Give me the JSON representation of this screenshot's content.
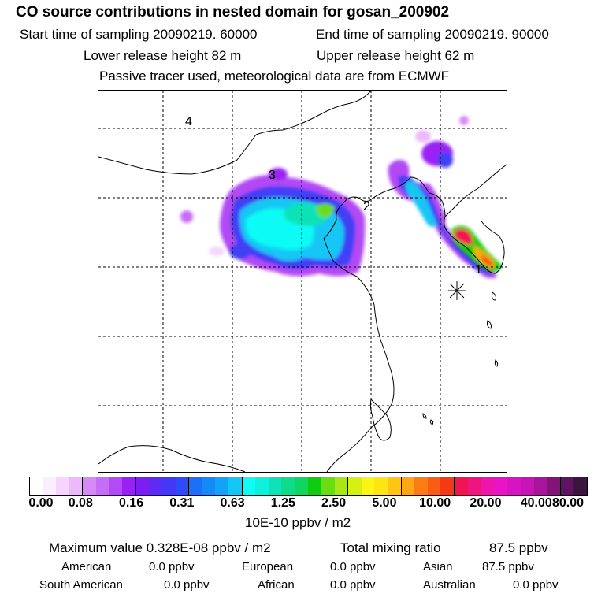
{
  "header": {
    "title": "CO  source contributions in nested domain for gosan_200902",
    "start_time": "Start time of sampling 20090219. 60000",
    "end_time": "End time of sampling 20090219. 90000",
    "lower_release": "Lower release height   82 m",
    "upper_release": "Upper release height   62 m",
    "tracer_note": "Passive tracer used, meteorological data are from ECMWF"
  },
  "map": {
    "labels": [
      "4",
      "3",
      "2",
      "1"
    ]
  },
  "colorbar": {
    "ticks": [
      "0.00",
      "0.08",
      "0.16",
      "0.31",
      "0.63",
      "1.25",
      "2.50",
      "5.00",
      "10.00",
      "20.00",
      "40.00",
      "80.00"
    ],
    "colors": [
      "#ffffff",
      "#fbeefe",
      "#f5d5fd",
      "#edb9fc",
      "#d58af8",
      "#c66cf6",
      "#b24af5",
      "#9a21f4",
      "#7a1ef2",
      "#5e2bf3",
      "#4338f5",
      "#2d4cf7",
      "#1d6ff7",
      "#1489f7",
      "#13a2f6",
      "#12c6f5",
      "#11fbf5",
      "#0ff0dc",
      "#0fe2b7",
      "#0fdb8d",
      "#0fd565",
      "#10cc10",
      "#6cdc12",
      "#a8e614",
      "#d6f014",
      "#fbf514",
      "#fde514",
      "#fdc614",
      "#fba814",
      "#fa7d14",
      "#f85d14",
      "#f53914",
      "#f21450",
      "#ef1480",
      "#ee14ac",
      "#e814c6",
      "#d714c2",
      "#c614b6",
      "#a8149c",
      "#821478",
      "#5e1460",
      "#3c1440"
    ],
    "unit_label": "10E-10 ppbv / m2"
  },
  "footer": {
    "max_value": "Maximum value  0.328E-08 ppbv / m2",
    "total_mixing": "Total mixing ratio",
    "total_mixing_value": "87.5 ppbv",
    "american_label": "American",
    "american_value": "0.0 ppbv",
    "european_label": "European",
    "european_value": "0.0 ppbv",
    "asian_label": "Asian",
    "asian_value": "87.5 ppbv",
    "south_american_label": "South American",
    "south_american_value": "0.0 ppbv",
    "african_label": "African",
    "african_value": "0.0 ppbv",
    "australian_label": "Australian",
    "australian_value": "0.0 ppbv"
  }
}
